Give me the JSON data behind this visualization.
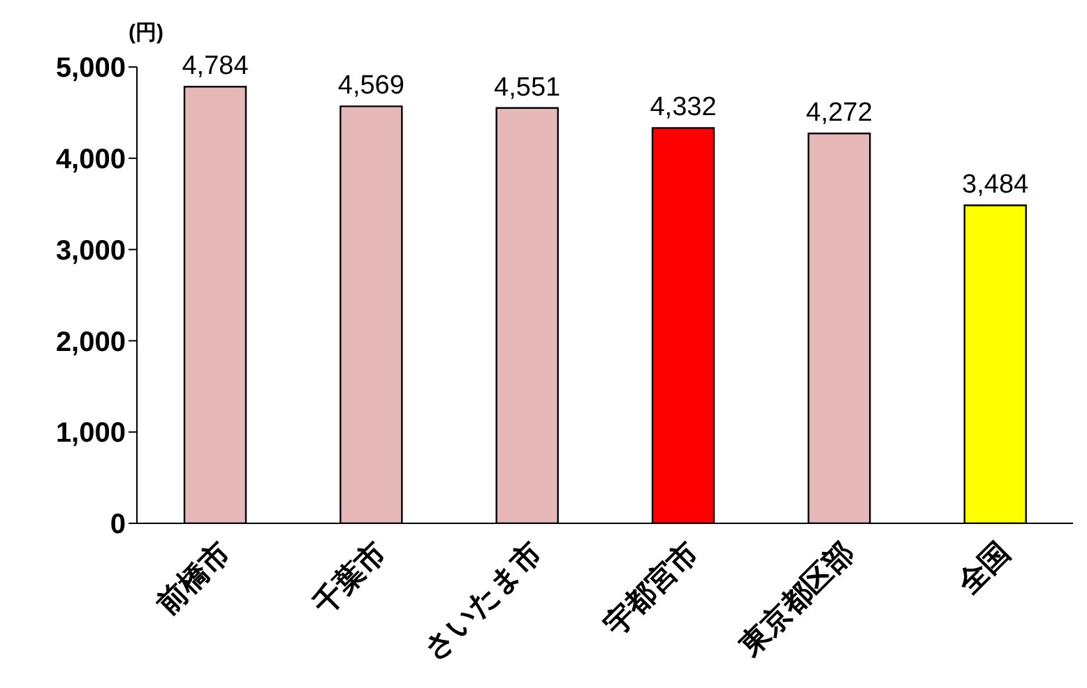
{
  "chart_data": {
    "type": "bar",
    "ylabel": "(円)",
    "categories": [
      "前橋市",
      "千葉市",
      "さいたま市",
      "宇都宮市",
      "東京都区部",
      "全国"
    ],
    "values": [
      4784,
      4569,
      4551,
      4332,
      4272,
      3484
    ],
    "colors": [
      "#e6b8b7",
      "#e6b8b7",
      "#e6b8b7",
      "#ff0000",
      "#e6b8b7",
      "#ffff00"
    ],
    "value_labels": [
      "4,784",
      "4,569",
      "4,551",
      "4,332",
      "4,272",
      "3,484"
    ],
    "ylim": [
      0,
      5000
    ],
    "yticks": [
      0,
      {
        "value": 1000,
        "label": "1,000"
      },
      {
        "value": 2000,
        "label": "2,000"
      },
      {
        "value": 3000,
        "label": "3,000"
      },
      {
        "value": 4000,
        "label": "4,000"
      },
      {
        "value": 5000,
        "label": "5,000"
      }
    ],
    "grid": false,
    "legend": false
  }
}
